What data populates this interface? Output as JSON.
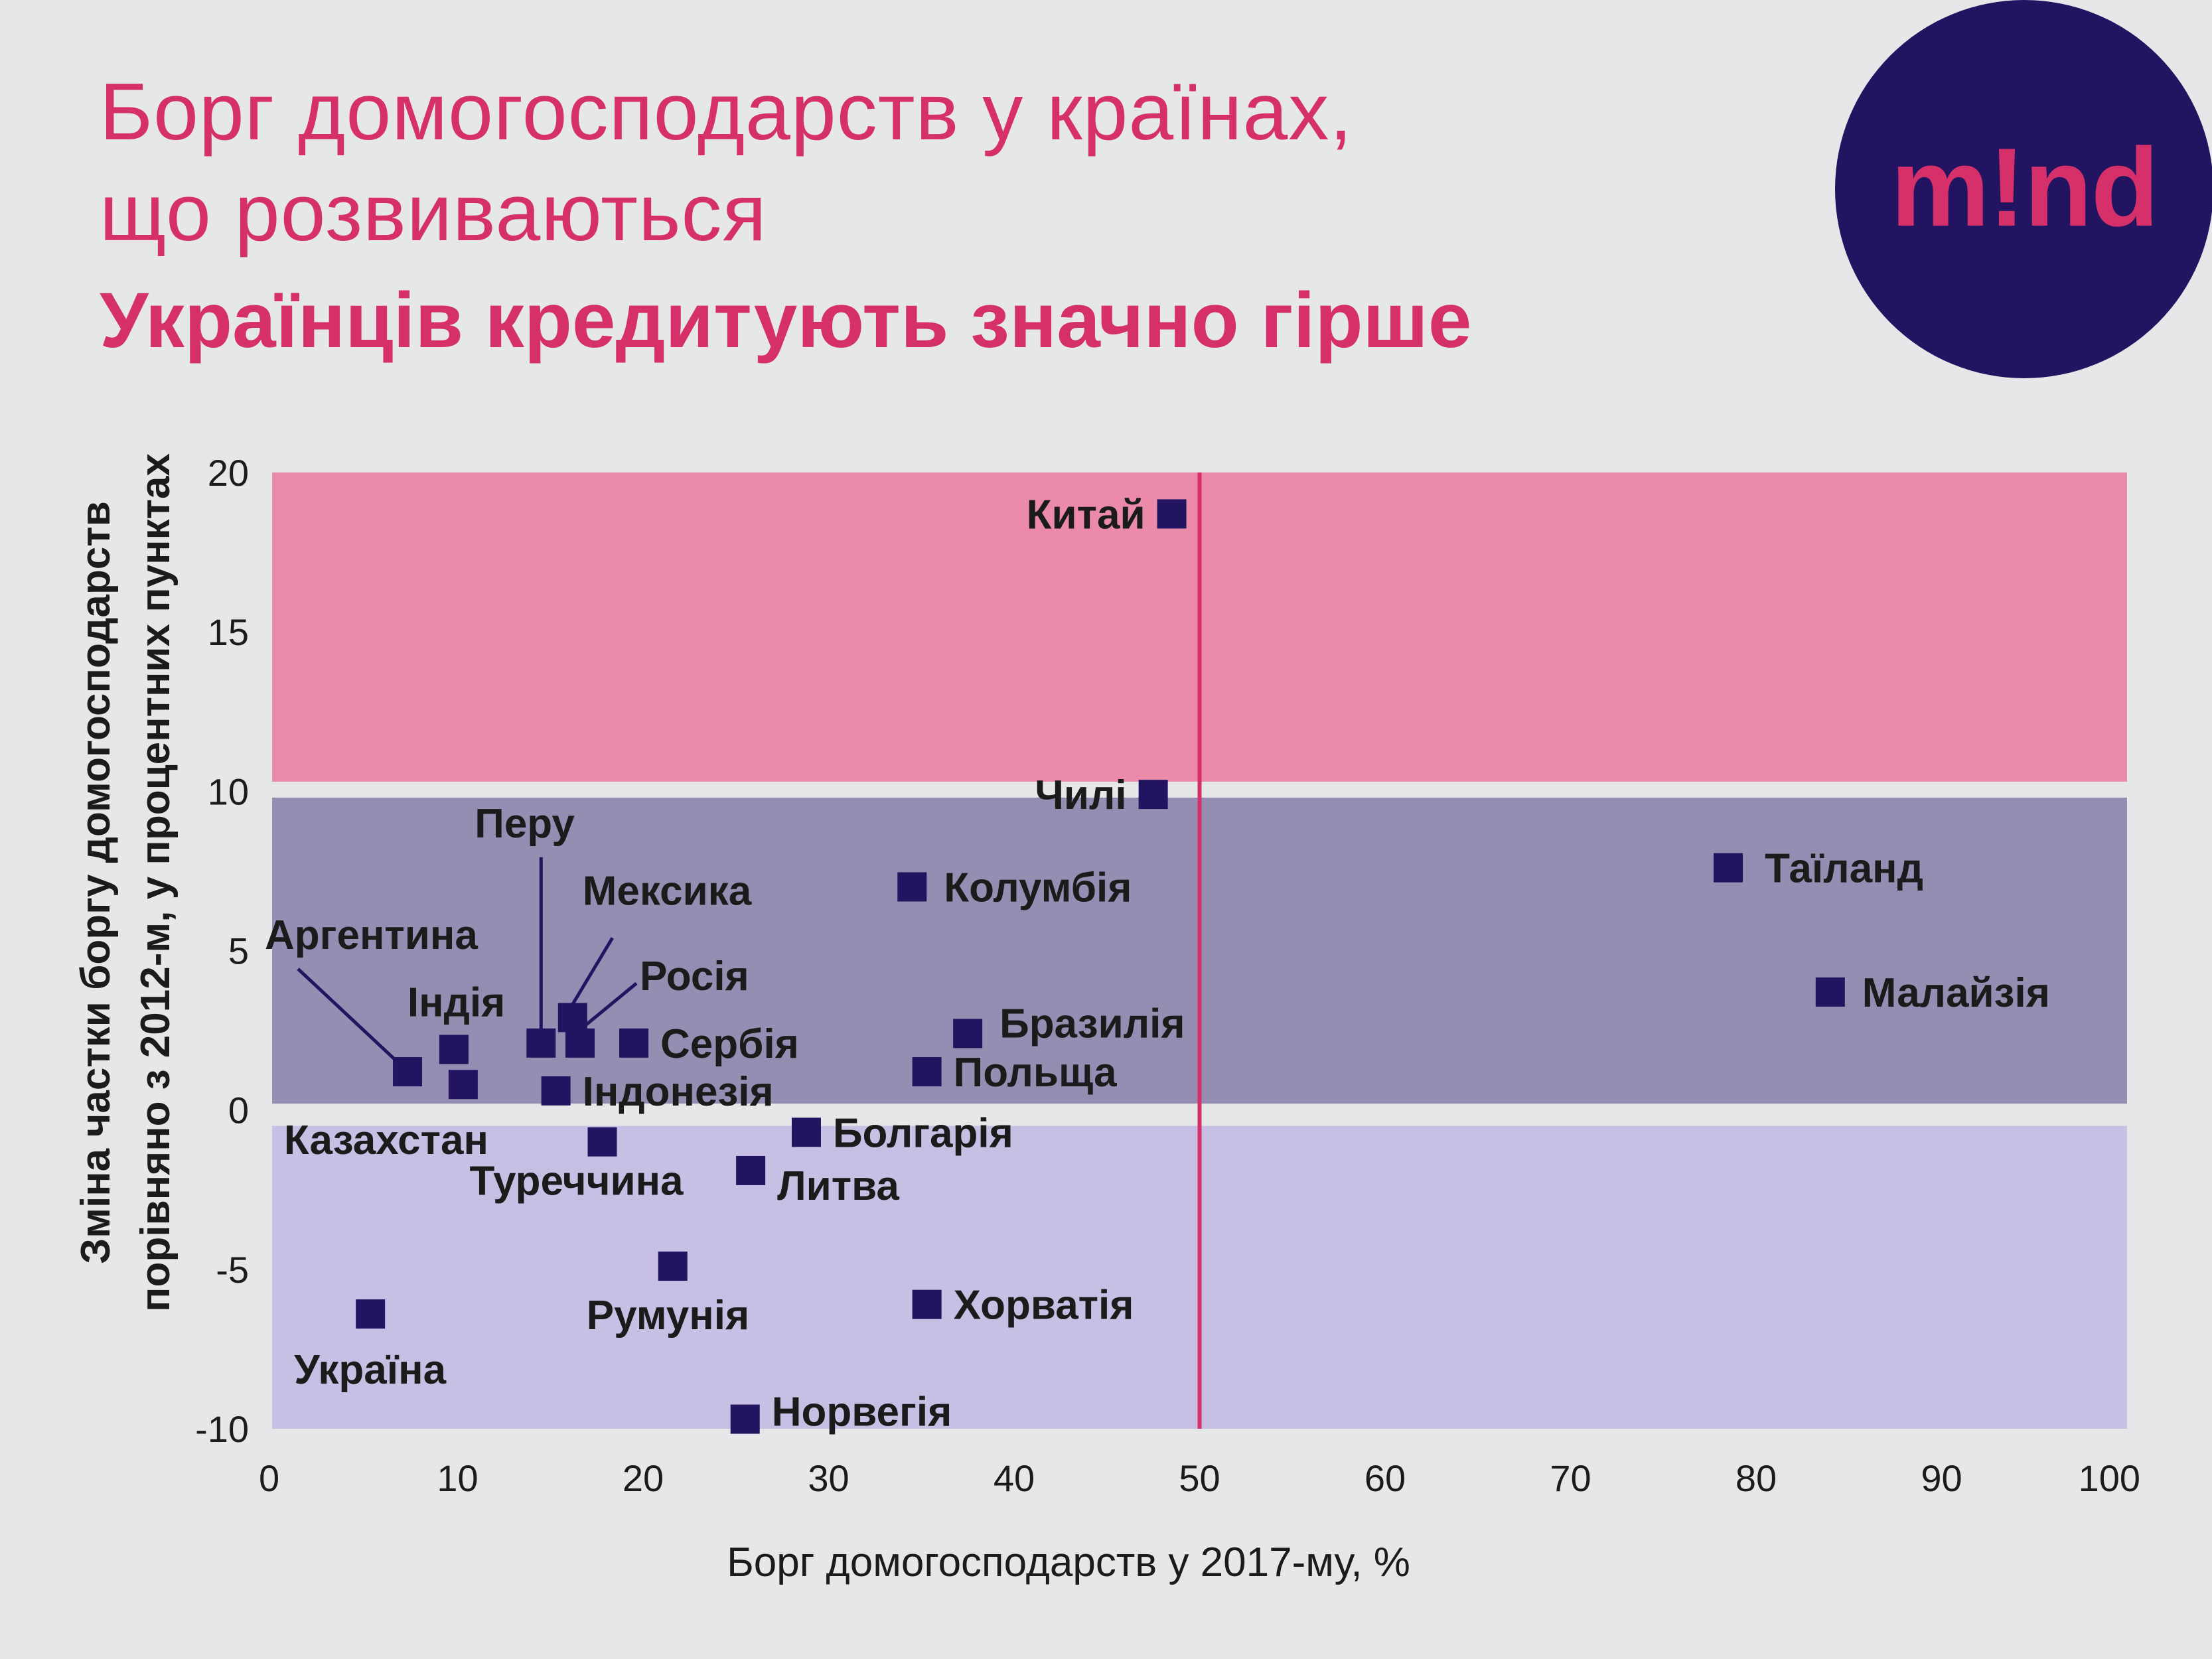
{
  "header": {
    "title_line1": "Борг домогосподарств у країнах,",
    "title_line2": "що розвиваються",
    "subtitle": "Українців кредитують значно гірше"
  },
  "logo": {
    "text": "m!nd"
  },
  "colors": {
    "background": "#e6e7e9",
    "accent": "#d6306a",
    "marker": "#221460",
    "zone_high": "#eb8aa9",
    "zone_mid": "#968db3",
    "zone_low": "#c8bfe4",
    "reference_line": "#d6306a"
  },
  "chart_data": {
    "type": "scatter",
    "xlabel": "Борг домогосподарств у 2017-му, %",
    "ylabel_line1": "Зміна частки боргу домогосподарств",
    "ylabel_line2": "порівняно з 2012-м, у процентних пунктах",
    "xlim": [
      0,
      100
    ],
    "ylim": [
      -10,
      20
    ],
    "xticks": [
      0,
      10,
      20,
      30,
      40,
      50,
      60,
      70,
      80,
      90,
      100
    ],
    "yticks": [
      20,
      15,
      10,
      5,
      0,
      -5,
      -10
    ],
    "grid": false,
    "legend": "none",
    "reference_line_x": 50,
    "zones": [
      {
        "y_from": 10.3,
        "y_to": 20,
        "color": "#eb8aa9"
      },
      {
        "y_from": 0.2,
        "y_to": 9.8,
        "color": "#968db3"
      },
      {
        "y_from": -10,
        "y_to": -0.5,
        "color": "#c8bfe4"
      }
    ],
    "points": [
      {
        "name": "Китай",
        "x": 48.5,
        "y": 18.7
      },
      {
        "name": "Чилі",
        "x": 47.5,
        "y": 9.9
      },
      {
        "name": "Таїланд",
        "x": 78.5,
        "y": 7.6
      },
      {
        "name": "Колумбія",
        "x": 34.5,
        "y": 7.0
      },
      {
        "name": "Малайзія",
        "x": 84,
        "y": 3.7
      },
      {
        "name": "Бразилія",
        "x": 37.5,
        "y": 2.4
      },
      {
        "name": "Польща",
        "x": 35.3,
        "y": 1.2
      },
      {
        "name": "Перу",
        "x": 14.5,
        "y": 2.1
      },
      {
        "name": "Мексика",
        "x": 16.2,
        "y": 2.9
      },
      {
        "name": "Росія",
        "x": 16.6,
        "y": 2.1
      },
      {
        "name": "Сербія",
        "x": 19.5,
        "y": 2.1
      },
      {
        "name": "Індія",
        "x": 9.8,
        "y": 1.9
      },
      {
        "name": "Аргентина",
        "x": 7.3,
        "y": 1.2
      },
      {
        "name": "Казахстан",
        "x": 10.3,
        "y": 0.8
      },
      {
        "name": "Індонезія",
        "x": 15.3,
        "y": 0.6
      },
      {
        "name": "Туреччина",
        "x": 17.8,
        "y": -1.0
      },
      {
        "name": "Болгарія",
        "x": 28.8,
        "y": -0.7
      },
      {
        "name": "Литва",
        "x": 25.8,
        "y": -1.9
      },
      {
        "name": "Румунія",
        "x": 21.6,
        "y": -4.9
      },
      {
        "name": "Хорватія",
        "x": 35.3,
        "y": -6.1
      },
      {
        "name": "Україна",
        "x": 5.3,
        "y": -6.4
      },
      {
        "name": "Норвегія",
        "x": 25.5,
        "y": -9.7
      }
    ]
  }
}
